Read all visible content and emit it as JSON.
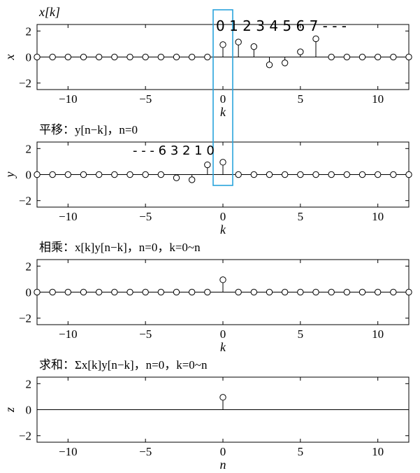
{
  "chart_data": [
    {
      "type": "stem",
      "title": "x[k]",
      "xlabel": "k",
      "ylabel": "x",
      "xlim": [
        -12,
        12
      ],
      "ylim": [
        -2.5,
        2.5
      ],
      "xticks": [
        -10,
        -5,
        0,
        5,
        10
      ],
      "yticks": [
        -2,
        0,
        2
      ],
      "x": [
        -12,
        -11,
        -10,
        -9,
        -8,
        -7,
        -6,
        -5,
        -4,
        -3,
        -2,
        -1,
        0,
        1,
        2,
        3,
        4,
        5,
        6,
        7,
        8,
        9,
        10,
        11,
        12
      ],
      "values": [
        0,
        0,
        0,
        0,
        0,
        0,
        0,
        0,
        0,
        0,
        0,
        0,
        0.95,
        1.15,
        0.8,
        -0.6,
        -0.45,
        0.4,
        1.4,
        0,
        0,
        0,
        0,
        0,
        0
      ]
    },
    {
      "type": "stem",
      "title": "平移：y[n−k]，n=0",
      "xlabel": "k",
      "ylabel": "y",
      "xlim": [
        -12,
        12
      ],
      "ylim": [
        -2.5,
        2.5
      ],
      "xticks": [
        -10,
        -5,
        0,
        5,
        10
      ],
      "yticks": [
        -2,
        0,
        2
      ],
      "x": [
        -12,
        -11,
        -10,
        -9,
        -8,
        -7,
        -6,
        -5,
        -4,
        -3,
        -2,
        -1,
        0,
        1,
        2,
        3,
        4,
        5,
        6,
        7,
        8,
        9,
        10,
        11,
        12
      ],
      "values": [
        0,
        0,
        0,
        0,
        0,
        0,
        0,
        0,
        0,
        -0.25,
        -0.4,
        0.75,
        0.95,
        0,
        0,
        0,
        0,
        0,
        0,
        0,
        0,
        0,
        0,
        0,
        0
      ]
    },
    {
      "type": "stem",
      "title": "相乘：x[k]y[n−k]，n=0，k=0~n",
      "xlabel": "k",
      "ylabel": "",
      "xlim": [
        -12,
        12
      ],
      "ylim": [
        -2.5,
        2.5
      ],
      "xticks": [
        -10,
        -5,
        0,
        5,
        10
      ],
      "yticks": [
        -2,
        0,
        2
      ],
      "x": [
        -12,
        -11,
        -10,
        -9,
        -8,
        -7,
        -6,
        -5,
        -4,
        -3,
        -2,
        -1,
        0,
        1,
        2,
        3,
        4,
        5,
        6,
        7,
        8,
        9,
        10,
        11,
        12
      ],
      "values": [
        0,
        0,
        0,
        0,
        0,
        0,
        0,
        0,
        0,
        0,
        0,
        0,
        0.95,
        0,
        0,
        0,
        0,
        0,
        0,
        0,
        0,
        0,
        0,
        0,
        0
      ]
    },
    {
      "type": "stem",
      "title": "求和：Σx[k]y[n−k]，n=0，k=0~n",
      "xlabel": "n",
      "ylabel": "z",
      "xlim": [
        -12,
        12
      ],
      "ylim": [
        -2.5,
        2.5
      ],
      "xticks": [
        -10,
        -5,
        0,
        5,
        10
      ],
      "yticks": [
        -2,
        0,
        2
      ],
      "x": [
        0
      ],
      "values": [
        0.95
      ]
    }
  ],
  "annotations": {
    "top_index_marks": "0 1 2 3 4 5 6 7 - - -",
    "top_index_color": "#e8202a",
    "shift_index_marks": "- - - 6 3 2 1 0",
    "shift_index_color": "#1fa0e0",
    "highlight_box_color": "#2aa3dc"
  }
}
